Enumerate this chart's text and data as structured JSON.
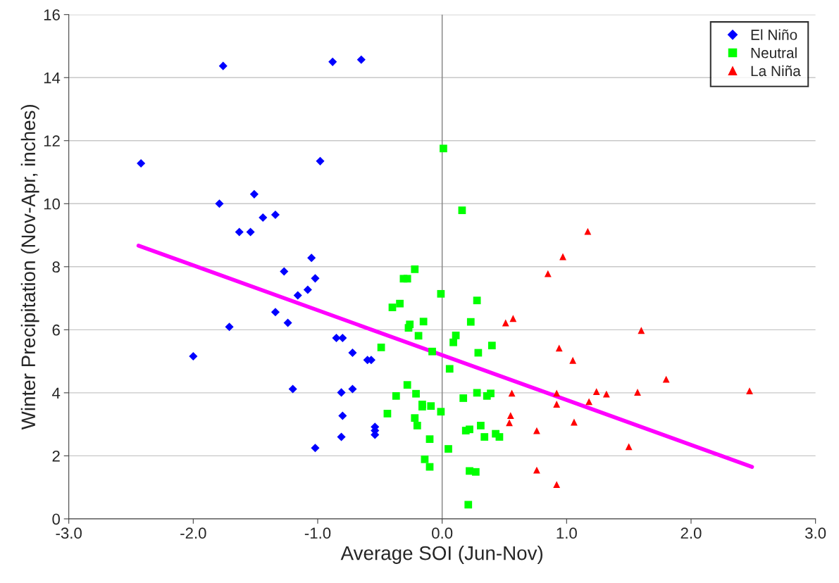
{
  "chart_data": {
    "type": "scatter",
    "xlabel": "Average SOI (Jun-Nov)",
    "ylabel": "Winter Precipitation (Nov-Apr, inches)",
    "xlim": [
      -3.0,
      3.0
    ],
    "ylim": [
      0,
      16
    ],
    "xticks": [
      {
        "value": -3,
        "label": "-3.0"
      },
      {
        "value": -2,
        "label": "-2.0"
      },
      {
        "value": -1,
        "label": "-1.0"
      },
      {
        "value": 0,
        "label": "0.0"
      },
      {
        "value": 1,
        "label": "1.0"
      },
      {
        "value": 2,
        "label": "2.0"
      },
      {
        "value": 3,
        "label": "3.0"
      }
    ],
    "yticks": [
      0,
      2,
      4,
      6,
      8,
      10,
      12,
      14,
      16
    ],
    "grid": "y",
    "legend": "top right",
    "ref_lines": [
      {
        "axis": "x",
        "value": 0,
        "color": "#808080"
      }
    ],
    "series": [
      {
        "name": "El Niño",
        "color": "#0000ff",
        "marker": "diamond",
        "x": [
          -1.76,
          -0.88,
          -0.65,
          -2.42,
          -0.98,
          -1.51,
          -1.79,
          -1.34,
          -1.44,
          -1.63,
          -1.54,
          -1.05,
          -1.27,
          -1.02,
          -1.08,
          -1.16,
          -1.34,
          -1.24,
          -1.71,
          -0.85,
          -0.8,
          -0.72,
          -0.6,
          -0.57,
          -2.0,
          -1.2,
          -0.81,
          -0.72,
          -0.8,
          -0.54,
          -0.54,
          -0.54,
          -0.81,
          -1.02
        ],
        "values": [
          14.37,
          14.5,
          14.57,
          11.28,
          11.35,
          10.3,
          10.0,
          9.65,
          9.56,
          9.1,
          9.1,
          8.28,
          7.85,
          7.63,
          7.27,
          7.09,
          6.56,
          6.22,
          6.09,
          5.74,
          5.74,
          5.27,
          5.04,
          5.04,
          5.16,
          4.12,
          4.01,
          4.12,
          3.27,
          2.92,
          2.8,
          2.67,
          2.6,
          2.25
        ]
      },
      {
        "name": "Neutral",
        "color": "#00ff00",
        "marker": "square",
        "x": [
          0.01,
          0.16,
          -0.22,
          -0.31,
          -0.28,
          -0.01,
          0.28,
          -0.4,
          -0.34,
          -0.15,
          0.23,
          -0.26,
          -0.27,
          -0.19,
          0.11,
          0.09,
          0.4,
          -0.49,
          -0.08,
          0.29,
          0.06,
          -0.28,
          -0.37,
          -0.21,
          0.17,
          0.28,
          0.36,
          0.39,
          -0.16,
          -0.16,
          -0.09,
          -0.01,
          -0.44,
          -0.22,
          -0.2,
          0.31,
          0.19,
          0.22,
          0.34,
          0.43,
          0.46,
          -0.1,
          0.05,
          -0.14,
          -0.1,
          0.22,
          0.27,
          0.21
        ],
        "values": [
          11.75,
          9.79,
          7.92,
          7.62,
          7.62,
          7.14,
          6.93,
          6.71,
          6.83,
          6.26,
          6.25,
          6.17,
          6.06,
          5.81,
          5.82,
          5.6,
          5.5,
          5.44,
          5.31,
          5.27,
          4.76,
          4.25,
          3.9,
          3.97,
          3.83,
          4.0,
          3.9,
          3.98,
          3.63,
          3.56,
          3.58,
          3.4,
          3.34,
          3.2,
          2.96,
          2.96,
          2.8,
          2.84,
          2.6,
          2.7,
          2.6,
          2.53,
          2.22,
          1.89,
          1.65,
          1.52,
          1.49,
          0.45
        ]
      },
      {
        "name": "La Niña",
        "color": "#ff0000",
        "marker": "triangle",
        "x": [
          1.17,
          0.97,
          0.85,
          0.51,
          0.57,
          1.6,
          0.94,
          1.05,
          1.8,
          0.56,
          0.92,
          1.24,
          1.32,
          1.57,
          2.47,
          1.18,
          0.92,
          0.55,
          0.54,
          1.06,
          0.76,
          1.5,
          0.76,
          0.92
        ],
        "values": [
          9.12,
          8.32,
          7.78,
          6.22,
          6.36,
          5.98,
          5.42,
          5.03,
          4.43,
          3.99,
          3.99,
          4.04,
          3.96,
          4.02,
          4.06,
          3.72,
          3.64,
          3.28,
          3.05,
          3.07,
          2.8,
          2.29,
          1.55,
          1.09
        ]
      },
      {
        "type": "line",
        "color": "#ff00ff",
        "x": [
          -2.44,
          2.49
        ],
        "values": [
          8.67,
          1.65
        ]
      }
    ]
  }
}
